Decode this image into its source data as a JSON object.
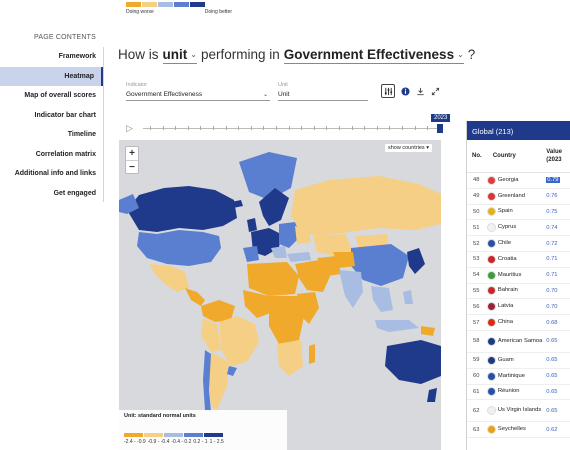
{
  "top_legend": {
    "worse_label": "Doing worse",
    "better_label": "Doing better",
    "colors": [
      "#f0a92b",
      "#f6cf86",
      "#a9bde3",
      "#5a7fd0",
      "#1f3a8a"
    ]
  },
  "sidebar": {
    "heading": "PAGE CONTENTS",
    "items": [
      {
        "label": "Framework"
      },
      {
        "label": "Heatmap",
        "active": true
      },
      {
        "label": "Map of overall scores"
      },
      {
        "label": "Indicator bar chart"
      },
      {
        "label": "Timeline"
      },
      {
        "label": "Correlation matrix"
      },
      {
        "label": "Additional info and links"
      },
      {
        "label": "Get engaged"
      }
    ]
  },
  "title": {
    "prefix": "How is",
    "unit_selector": "unit",
    "middle": "performing in",
    "indicator_selector": "Government Effectiveness",
    "suffix": "?"
  },
  "controls": {
    "indicator_label": "Indicator",
    "indicator_value": "Government Effectiveness",
    "unit_label": "Unit",
    "unit_value": "Unit",
    "icons": [
      "sliders-icon",
      "info-icon",
      "download-icon",
      "expand-icon"
    ]
  },
  "timeline": {
    "year": "2023"
  },
  "map": {
    "show_countries_label": "show countries",
    "zoom_in": "+",
    "zoom_out": "−",
    "legend": {
      "unit_text": "Unit: standard normal units",
      "ranges": [
        "-2.4 - -0.9",
        "-0.9 - -0.4",
        "-0.4 - 0.2",
        "0.2 - 1",
        "1 - 2.5"
      ],
      "colors": [
        "#f0a92b",
        "#f6cf86",
        "#a9bde3",
        "#5a7fd0",
        "#1f3a8a"
      ]
    }
  },
  "ranking": {
    "header": "Global (213)",
    "col_no": "No.",
    "col_country": "Country",
    "col_value_line1": "Value",
    "col_value_line2": "(2023",
    "rows": [
      {
        "no": "48",
        "country": "Georgia",
        "value": "0.79",
        "highlight": true,
        "flag": "#e23b3b"
      },
      {
        "no": "49",
        "country": "Greenland",
        "value": "0.76",
        "flag": "#d33"
      },
      {
        "no": "50",
        "country": "Spain",
        "value": "0.75",
        "flag": "#e0b21b"
      },
      {
        "no": "51",
        "country": "Cyprus",
        "value": "0.74",
        "flag": "#f2f2f2"
      },
      {
        "no": "52",
        "country": "Chile",
        "value": "0.72",
        "flag": "#2b4ea8"
      },
      {
        "no": "53",
        "country": "Croatia",
        "value": "0.71",
        "flag": "#c8262b"
      },
      {
        "no": "54",
        "country": "Mauritius",
        "value": "0.71",
        "flag": "#3c9b3a"
      },
      {
        "no": "55",
        "country": "Bahrain",
        "value": "0.70",
        "flag": "#c8262b"
      },
      {
        "no": "56",
        "country": "Latvia",
        "value": "0.70",
        "flag": "#9b2335"
      },
      {
        "no": "57",
        "country": "China",
        "value": "0.68",
        "flag": "#de2910"
      },
      {
        "no": "58",
        "country": "American Samoa",
        "value": "0.65",
        "flag": "#1d3b80",
        "tall": true
      },
      {
        "no": "59",
        "country": "Guam",
        "value": "0.65",
        "flag": "#1d3b80"
      },
      {
        "no": "60",
        "country": "Martinique",
        "value": "0.65",
        "flag": "#2750a8"
      },
      {
        "no": "61",
        "country": "Réunion",
        "value": "0.65",
        "flag": "#2750a8"
      },
      {
        "no": "62",
        "country": "Us Virgin Islands",
        "value": "0.65",
        "flag": "#f0f0f0",
        "tall": true
      },
      {
        "no": "63",
        "country": "Seychelles",
        "value": "0.62",
        "flag": "#e6a21a"
      }
    ]
  }
}
